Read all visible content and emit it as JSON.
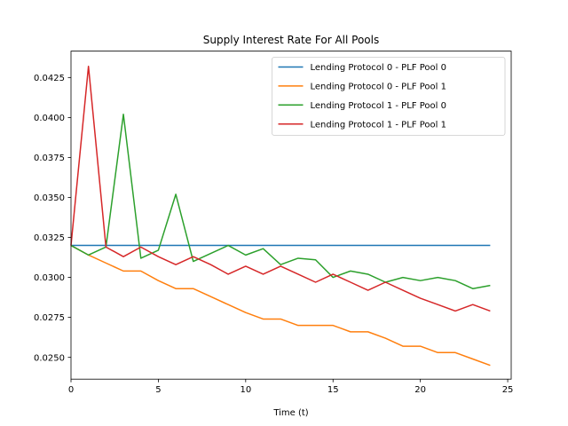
{
  "chart_data": {
    "type": "line",
    "title": "Supply Interest Rate For All Pools",
    "xlabel": "Time (t)",
    "ylabel": "",
    "xlim": [
      0,
      25.2
    ],
    "ylim": [
      0.02364,
      0.04415
    ],
    "x_ticks": [
      0,
      5,
      10,
      15,
      20,
      25
    ],
    "y_ticks": [
      0.025,
      0.0275,
      0.03,
      0.0325,
      0.035,
      0.0375,
      0.04,
      0.0425
    ],
    "y_tick_labels": [
      "0.0250",
      "0.0275",
      "0.0300",
      "0.0325",
      "0.0350",
      "0.0375",
      "0.0400",
      "0.0425"
    ],
    "legend_position": "top-right",
    "grid": false,
    "x": [
      0,
      1,
      2,
      3,
      4,
      5,
      6,
      7,
      8,
      9,
      10,
      11,
      12,
      13,
      14,
      15,
      16,
      17,
      18,
      19,
      20,
      21,
      22,
      23,
      24
    ],
    "series": [
      {
        "name": "Lending Protocol 0 - PLF Pool 0",
        "color": "#1f77b4",
        "values": [
          0.032,
          0.032,
          0.032,
          0.032,
          0.032,
          0.032,
          0.032,
          0.032,
          0.032,
          0.032,
          0.032,
          0.032,
          0.032,
          0.032,
          0.032,
          0.032,
          0.032,
          0.032,
          0.032,
          0.032,
          0.032,
          0.032,
          0.032,
          0.032,
          0.032
        ]
      },
      {
        "name": "Lending Protocol 0 - PLF Pool 1",
        "color": "#ff7f0e",
        "values": [
          0.032,
          0.0314,
          0.0309,
          0.0304,
          0.0304,
          0.0298,
          0.0293,
          0.0293,
          0.0288,
          0.0283,
          0.0278,
          0.0274,
          0.0274,
          0.027,
          0.027,
          0.027,
          0.0266,
          0.0266,
          0.0262,
          0.0257,
          0.0257,
          0.0253,
          0.0253,
          0.0249,
          0.0245
        ]
      },
      {
        "name": "Lending Protocol 1 - PLF Pool 0",
        "color": "#2ca02c",
        "values": [
          0.032,
          0.0314,
          0.0319,
          0.0402,
          0.0312,
          0.0317,
          0.0352,
          0.031,
          0.0315,
          0.032,
          0.0314,
          0.0318,
          0.0308,
          0.0312,
          0.0311,
          0.03,
          0.0304,
          0.0302,
          0.0297,
          0.03,
          0.0298,
          0.03,
          0.0298,
          0.0293,
          0.0295
        ]
      },
      {
        "name": "Lending Protocol 1 - PLF Pool 1",
        "color": "#d62728",
        "values": [
          0.032,
          0.0432,
          0.0319,
          0.0313,
          0.0319,
          0.0313,
          0.0308,
          0.0313,
          0.0308,
          0.0302,
          0.0307,
          0.0302,
          0.0307,
          0.0302,
          0.0297,
          0.0302,
          0.0297,
          0.0292,
          0.0297,
          0.0292,
          0.0287,
          0.0283,
          0.0279,
          0.0283,
          0.0279
        ]
      }
    ]
  }
}
